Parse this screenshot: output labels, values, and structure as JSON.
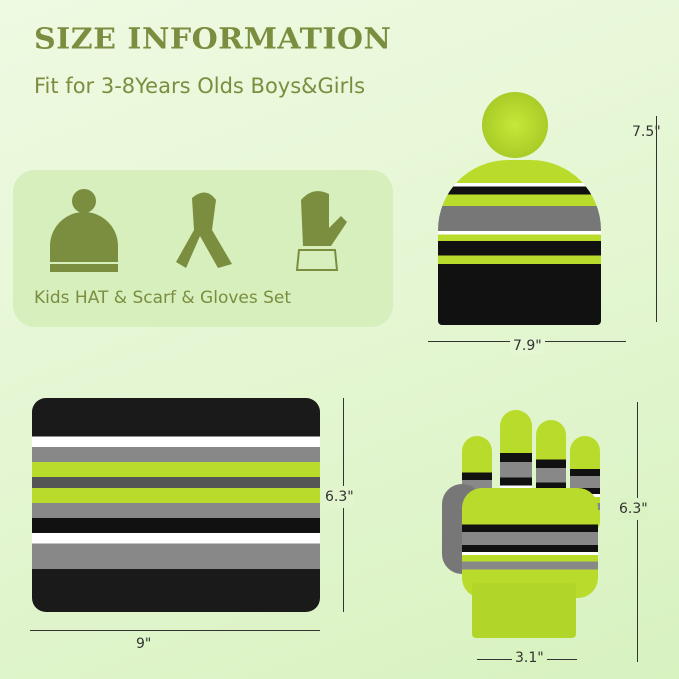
{
  "header": {
    "title": "SIZE INFORMATION",
    "subtitle": "Fit for 3-8Years Olds Boys&Girls"
  },
  "set_card": {
    "label": "Kids HAT & Scarf & Gloves Set",
    "icons": [
      "hat-icon",
      "scarf-icon",
      "glove-icon"
    ]
  },
  "dimensions": {
    "hat_height": "7.5\"",
    "hat_width": "7.9\"",
    "neck_height": "6.3\"",
    "neck_width": "9\"",
    "glove_height": "6.3\"",
    "glove_width": "3.1\""
  },
  "colors": {
    "accent": "#7b8d3f",
    "lime": "#b9dc2c",
    "background": "#e4f6d2"
  }
}
